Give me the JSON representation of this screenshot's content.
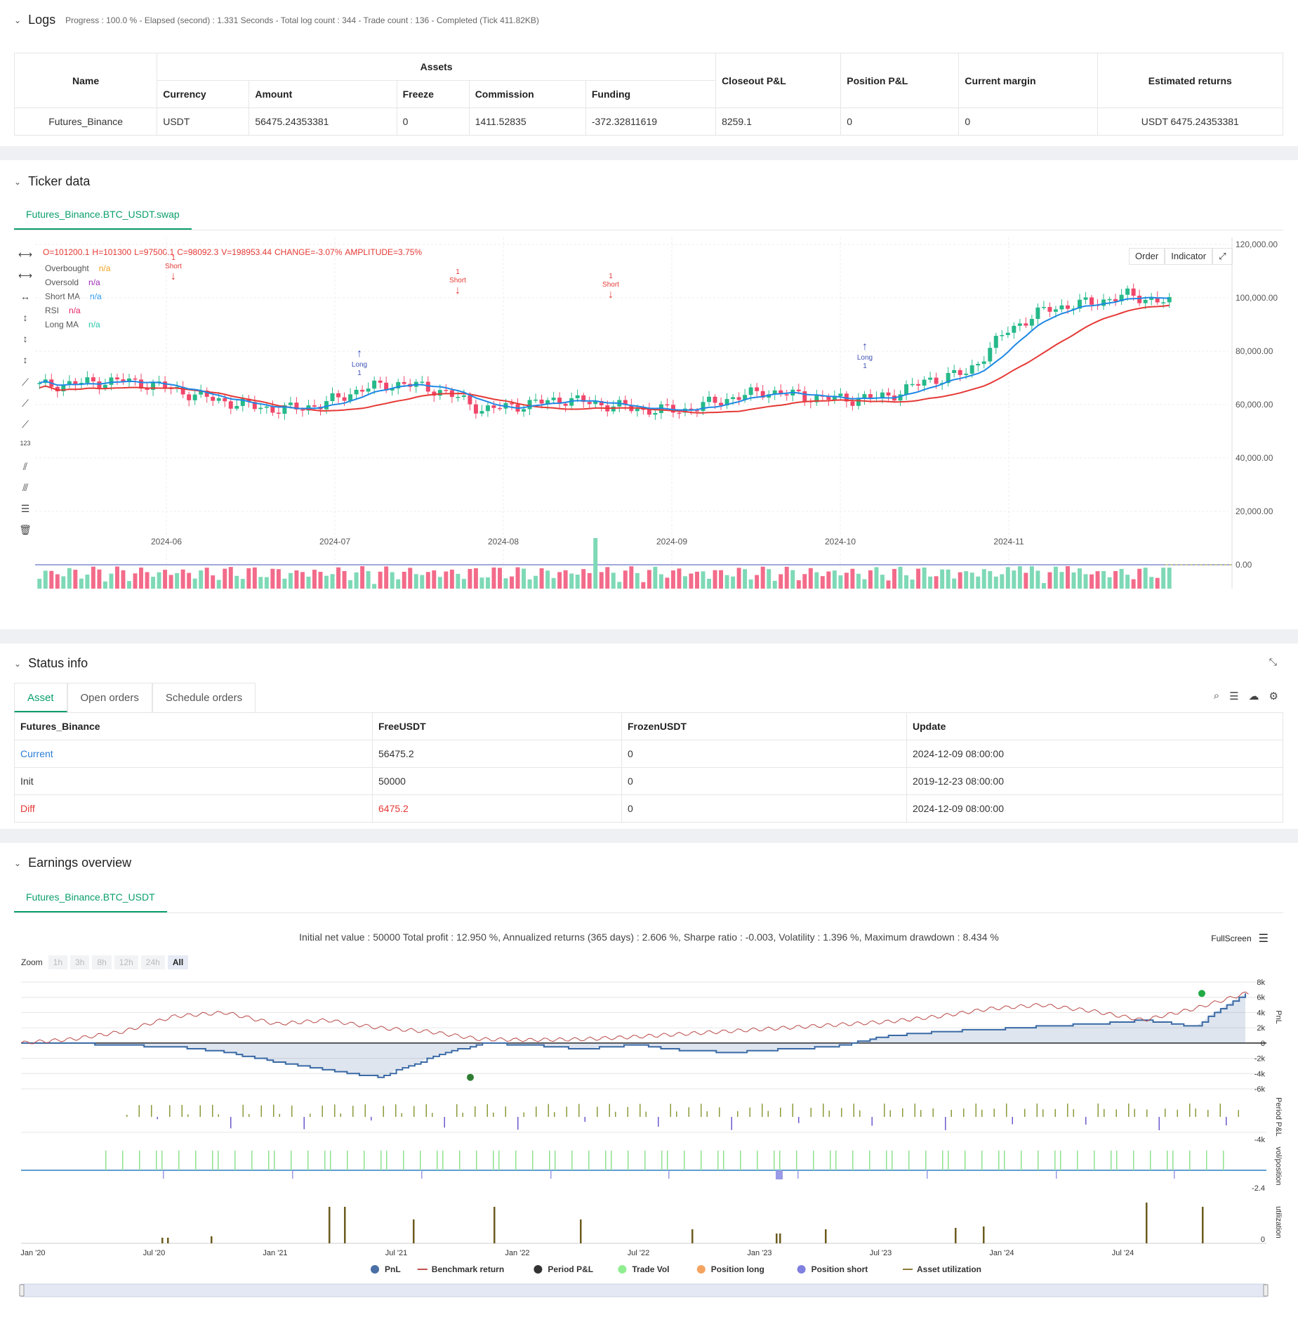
{
  "logs": {
    "title": "Logs",
    "summary": "Progress : 100.0 % - Elapsed (second) : 1.331 Seconds - Total log count : 344 - Trade count : 136 - Completed (Tick 411.82KB)",
    "headers": {
      "name": "Name",
      "assets": "Assets",
      "currency": "Currency",
      "amount": "Amount",
      "freeze": "Freeze",
      "commission": "Commission",
      "funding": "Funding",
      "closeout": "Closeout P&L",
      "position": "Position P&L",
      "margin": "Current margin",
      "returns": "Estimated returns"
    },
    "row": {
      "name": "Futures_Binance",
      "currency": "USDT",
      "amount": "56475.24353381",
      "freeze": "0",
      "commission": "1411.52835",
      "funding": "-372.32811619",
      "closeout": "8259.1",
      "position": "0",
      "margin": "0",
      "returns": "USDT 6475.24353381"
    }
  },
  "ticker": {
    "title": "Ticker data",
    "tab": "Futures_Binance.BTC_USDT.swap",
    "ohlc": {
      "o": "O=101200.1",
      "h": "H=101300",
      "l": "L=97500.1",
      "c": "C=98092.3",
      "v": "V=198953.44",
      "change": "CHANGE=-3.07%",
      "amp": "AMPLITUDE=3.75%"
    },
    "legend": [
      {
        "name": "Overbought",
        "val": "n/a",
        "color": "#f0a020"
      },
      {
        "name": "Oversold",
        "val": "n/a",
        "color": "#9c27b0"
      },
      {
        "name": "Short MA",
        "val": "n/a",
        "color": "#2196f3"
      },
      {
        "name": "RSI",
        "val": "n/a",
        "color": "#e91e63"
      },
      {
        "name": "Long MA",
        "val": "n/a",
        "color": "#26c6a9"
      }
    ],
    "buttons": {
      "order": "Order",
      "indicator": "Indicator"
    },
    "y_ticks": [
      "120,000.00",
      "100,000.00",
      "80,000.00",
      "60,000.00",
      "40,000.00",
      "20,000.00",
      "0.00"
    ],
    "x_ticks": [
      "2024-06",
      "2024-07",
      "2024-08",
      "2024-09",
      "2024-10",
      "2024-11"
    ],
    "signals": [
      {
        "label": "Short",
        "qty": "1",
        "color": "#e53935"
      },
      {
        "label": "Long",
        "qty": "1",
        "color": "#3f51b5"
      },
      {
        "label": "Short",
        "qty": "1",
        "color": "#e53935"
      },
      {
        "label": "Short",
        "qty": "1",
        "color": "#e53935"
      },
      {
        "label": "Long",
        "qty": "1",
        "color": "#3f51b5"
      }
    ]
  },
  "status": {
    "title": "Status info",
    "tabs": [
      "Asset",
      "Open orders",
      "Schedule orders"
    ],
    "headers": [
      "Futures_Binance",
      "FreeUSDT",
      "FrozenUSDT",
      "Update"
    ],
    "rows": [
      {
        "label": "Current",
        "free": "56475.2",
        "frozen": "0",
        "update": "2024-12-09 08:00:00",
        "color": "#2a7fd4"
      },
      {
        "label": "Init",
        "free": "50000",
        "frozen": "0",
        "update": "2019-12-23 08:00:00",
        "color": "#333"
      },
      {
        "label": "Diff",
        "free": "6475.2",
        "frozen": "0",
        "update": "2024-12-09 08:00:00",
        "color": "#e53935"
      }
    ]
  },
  "earnings": {
    "title": "Earnings overview",
    "tab": "Futures_Binance.BTC_USDT",
    "summary": "Initial net value : 50000 Total profit : 12.950 %, Annualized returns (365 days) : 2.606 %, Sharpe ratio : -0.003, Volatility : 1.396 %, Maximum drawdown : 8.434 %",
    "fullscreen": "FullScreen",
    "zoom_label": "Zoom",
    "zoom": [
      "1h",
      "3h",
      "8h",
      "12h",
      "24h",
      "All"
    ],
    "pnl_ticks": [
      "8k",
      "6k",
      "4k",
      "2k",
      "0",
      "-2k",
      "-4k",
      "-6k"
    ],
    "period_tick": "-4k",
    "vol_tick": "-2.4",
    "util_tick": "0",
    "axis_titles": [
      "PnL",
      "Period P&L",
      "vol/position",
      "utilization"
    ],
    "x_ticks": [
      "Jan '20",
      "Jul '20",
      "Jan '21",
      "Jul '21",
      "Jan '22",
      "Jul '22",
      "Jan '23",
      "Jul '23",
      "Jan '24",
      "Jul '24"
    ],
    "legend": [
      {
        "name": "PnL",
        "color": "#4a6fa5"
      },
      {
        "name": "Benchmark return",
        "color": "#c0504d"
      },
      {
        "name": "Period P&L",
        "color": "#333333"
      },
      {
        "name": "Trade Vol",
        "color": "#90ee90"
      },
      {
        "name": "Position long",
        "color": "#f4a460"
      },
      {
        "name": "Position short",
        "color": "#8080e0"
      },
      {
        "name": "Asset utilization",
        "color": "#8b7d3a"
      }
    ]
  },
  "chart_data": [
    {
      "type": "candlestick",
      "title": "Futures_Binance.BTC_USDT.swap",
      "x_range": [
        "2024-05",
        "2024-12"
      ],
      "ylim": [
        0,
        120000
      ],
      "close_approx": [
        67000,
        68000,
        69000,
        67000,
        63000,
        60000,
        58000,
        60000,
        66000,
        68000,
        65000,
        58000,
        60000,
        62000,
        60000,
        58000,
        58000,
        62000,
        65000,
        63000,
        62000,
        63000,
        69000,
        72000,
        88000,
        96000,
        98000,
        101000,
        98092
      ],
      "series": [
        {
          "name": "Short MA"
        },
        {
          "name": "Long MA"
        }
      ]
    },
    {
      "type": "line",
      "title": "PnL",
      "ylim": [
        -6000,
        8000
      ],
      "pnl_approx": [
        0,
        0,
        -300,
        -500,
        -1200,
        -2500,
        -3500,
        -4500,
        -2000,
        0,
        -300,
        -800,
        -200,
        -1000,
        -1200,
        -800,
        -400,
        1000,
        1500,
        1800,
        2200,
        2500,
        3000,
        2200,
        6475
      ],
      "benchmark_approx": [
        0,
        500,
        1500,
        3500,
        4000,
        2500,
        3000,
        2000,
        1500,
        500,
        400,
        500,
        800,
        1200,
        1600,
        2000,
        2400,
        2800,
        3500,
        4500,
        5000,
        4200,
        3000,
        4500,
        6500
      ]
    }
  ]
}
